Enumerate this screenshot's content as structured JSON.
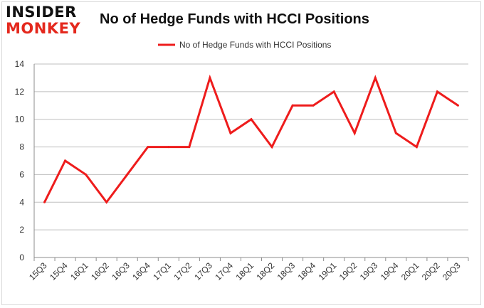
{
  "logo": {
    "line1": "INSIDER",
    "line2": "MONKEY"
  },
  "colors": {
    "series": "#ee1c1c",
    "grid": "#bfbfbf",
    "axis": "#8c8c8c",
    "brand_red": "#e4281d"
  },
  "chart_data": {
    "type": "line",
    "title": "No of Hedge Funds with HCCI Positions",
    "legend_position": "top-center",
    "grid": true,
    "ylim": [
      0,
      14
    ],
    "yticks": [
      0,
      2,
      4,
      6,
      8,
      10,
      12,
      14
    ],
    "categories": [
      "15Q3",
      "15Q4",
      "16Q1",
      "16Q2",
      "16Q3",
      "16Q4",
      "17Q1",
      "17Q2",
      "17Q3",
      "17Q4",
      "18Q1",
      "18Q2",
      "18Q3",
      "18Q4",
      "19Q1",
      "19Q2",
      "19Q3",
      "19Q4",
      "20Q1",
      "20Q2",
      "20Q3"
    ],
    "series": [
      {
        "name": "No of Hedge Funds with HCCI Positions",
        "values": [
          4,
          7,
          6,
          4,
          6,
          8,
          8,
          8,
          13,
          9,
          10,
          8,
          11,
          11,
          12,
          9,
          13,
          9,
          8,
          12,
          11
        ]
      }
    ]
  }
}
